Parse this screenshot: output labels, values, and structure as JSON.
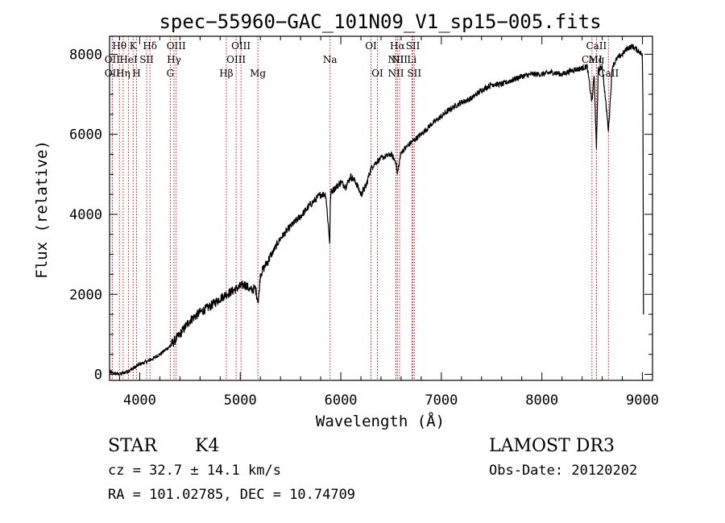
{
  "chart_data": {
    "type": "line",
    "title": "spec−55960−GAC_101N09_V1_sp15−005.fits",
    "xlabel": "Wavelength (Å)",
    "ylabel": "Flux (relative)",
    "xlim": [
      3700,
      9100
    ],
    "ylim": [
      -150,
      8450
    ],
    "xticks": [
      4000,
      5000,
      6000,
      7000,
      8000,
      9000
    ],
    "yticks": [
      0,
      2000,
      4000,
      6000,
      8000
    ],
    "series": [
      {
        "name": "spectrum",
        "x": [
          3700,
          3800,
          3900,
          4000,
          4100,
          4200,
          4300,
          4350,
          4400,
          4500,
          4600,
          4700,
          4800,
          4860,
          4900,
          5000,
          5050,
          5100,
          5150,
          5180,
          5200,
          5300,
          5400,
          5500,
          5600,
          5700,
          5800,
          5850,
          5890,
          5895,
          5900,
          6000,
          6050,
          6100,
          6150,
          6200,
          6250,
          6300,
          6350,
          6400,
          6500,
          6550,
          6562,
          6600,
          6700,
          6800,
          6900,
          7000,
          7100,
          7200,
          7300,
          7400,
          7500,
          7600,
          7700,
          7800,
          7900,
          8000,
          8100,
          8200,
          8300,
          8400,
          8450,
          8498,
          8520,
          8542,
          8560,
          8600,
          8662,
          8700,
          8750,
          8800,
          8850,
          8900,
          8950,
          8980,
          9000,
          9005,
          9010
        ],
        "y": [
          50,
          0,
          100,
          250,
          350,
          500,
          700,
          850,
          1000,
          1350,
          1550,
          1700,
          1900,
          2000,
          2050,
          2200,
          2250,
          2100,
          2150,
          1800,
          2500,
          2950,
          3400,
          3700,
          3950,
          4250,
          4500,
          4500,
          3300,
          4200,
          4550,
          4800,
          4700,
          4950,
          4800,
          4500,
          4700,
          5150,
          5300,
          5400,
          5500,
          5300,
          5000,
          5550,
          5800,
          6000,
          6250,
          6450,
          6650,
          6800,
          6900,
          7100,
          7250,
          7250,
          7350,
          7450,
          7500,
          7500,
          7550,
          7500,
          7600,
          7650,
          7700,
          6800,
          7500,
          5600,
          7600,
          7700,
          6100,
          7700,
          7900,
          8000,
          8150,
          8200,
          8100,
          8050,
          7950,
          6800,
          1500
        ]
      }
    ],
    "lines": [
      {
        "wl": 3798,
        "label": "Hθ",
        "row": 0
      },
      {
        "wl": 3727,
        "label": "OII",
        "row": 1
      },
      {
        "wl": 3727,
        "label": "OII",
        "row": 2
      },
      {
        "wl": 3835,
        "label": "Hη",
        "row": 2
      },
      {
        "wl": 3889,
        "label": "HeI",
        "row": 1
      },
      {
        "wl": 3934,
        "label": "K",
        "row": 0
      },
      {
        "wl": 3968,
        "label": "H",
        "row": 2
      },
      {
        "wl": 4069,
        "label": "SII",
        "row": 1
      },
      {
        "wl": 4102,
        "label": "Hδ",
        "row": 0
      },
      {
        "wl": 4304,
        "label": "G",
        "row": 2
      },
      {
        "wl": 4341,
        "label": "Hγ",
        "row": 1
      },
      {
        "wl": 4363,
        "label": "OIII",
        "row": 0
      },
      {
        "wl": 4861,
        "label": "Hβ",
        "row": 2
      },
      {
        "wl": 4959,
        "label": "OIII",
        "row": 1
      },
      {
        "wl": 5007,
        "label": "OIII",
        "row": 0
      },
      {
        "wl": 5175,
        "label": "Mg",
        "row": 2
      },
      {
        "wl": 5893,
        "label": "Na",
        "row": 1
      },
      {
        "wl": 6300,
        "label": "OI",
        "row": 0
      },
      {
        "wl": 6364,
        "label": "OI",
        "row": 2
      },
      {
        "wl": 6548,
        "label": "NII",
        "row": 1
      },
      {
        "wl": 6548,
        "label": "NII",
        "row": 2
      },
      {
        "wl": 6563,
        "label": "Hα",
        "row": 0
      },
      {
        "wl": 6584,
        "label": "NII",
        "row": 1
      },
      {
        "wl": 6707,
        "label": "Li",
        "row": 1
      },
      {
        "wl": 6717,
        "label": "SII",
        "row": 0
      },
      {
        "wl": 6731,
        "label": "SII",
        "row": 2
      },
      {
        "wl": 8498,
        "label": "CaII",
        "row": 1
      },
      {
        "wl": 8542,
        "label": "CaII",
        "row": 0
      },
      {
        "wl": 8542,
        "label": "Mg",
        "row": 1
      },
      {
        "wl": 8662,
        "label": "CaII",
        "row": 2
      }
    ]
  },
  "info": {
    "class": "STAR",
    "subclass": "K4",
    "survey": "LAMOST DR3",
    "cz": "cz = 32.7 ± 14.1 km/s",
    "obs_date": "Obs-Date: 20120202",
    "radec": "RA = 101.02785, DEC =  10.74709"
  }
}
